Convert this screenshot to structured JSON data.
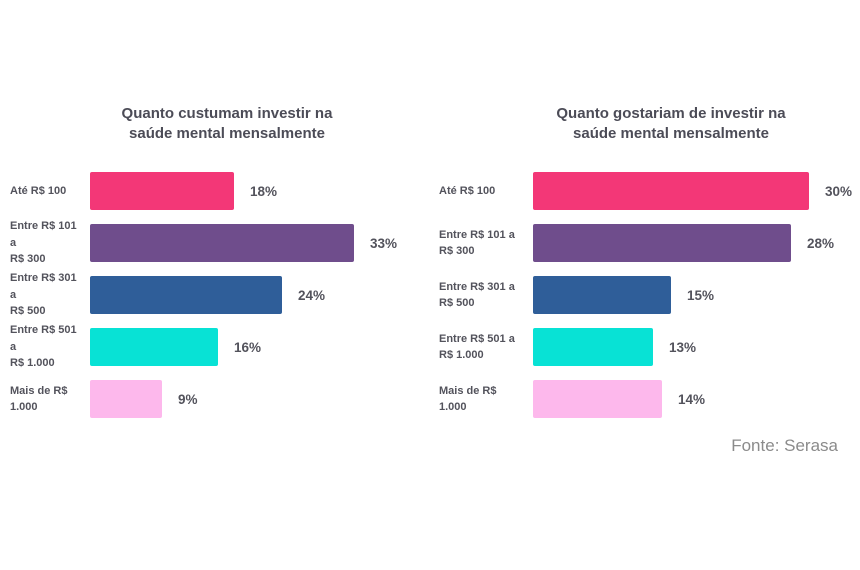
{
  "page": {
    "background_color": "#ffffff"
  },
  "footer": {
    "source_label": "Fonte: Serasa",
    "color": "#8b8b8b"
  },
  "text_colors": {
    "title": "#4c4c57",
    "category": "#53535c",
    "value": "#53535c"
  },
  "chart_data": [
    {
      "type": "bar",
      "orientation": "horizontal",
      "title": "Quanto custumam investir na saúde mental mensalmente",
      "title_lines": [
        "Quanto custumam investir na",
        "saúde mental mensalmente"
      ],
      "categories": [
        "Até R$ 100",
        "Entre R$ 101 a R$ 300",
        "Entre R$ 301 a R$ 500",
        "Entre R$ 501 a R$ 1.000",
        "Mais de R$ 1.000"
      ],
      "category_lines": [
        [
          "Até R$ 100"
        ],
        [
          "Entre R$ 101 a",
          "R$ 300"
        ],
        [
          "Entre R$ 301 a",
          "R$ 500"
        ],
        [
          "Entre R$ 501 a",
          "R$ 1.000"
        ],
        [
          "Mais de R$ 1.000"
        ]
      ],
      "values": [
        18,
        33,
        24,
        16,
        9
      ],
      "value_suffix": "%",
      "bar_colors": [
        "#f33777",
        "#6f4d8c",
        "#2f5e99",
        "#08e2d5",
        "#fdb8ec"
      ],
      "xlim": [
        0,
        40
      ],
      "grid": false,
      "data_labels": true,
      "legend": false
    },
    {
      "type": "bar",
      "orientation": "horizontal",
      "title": "Quanto gostariam de investir na saúde mental mensalmente",
      "title_lines": [
        "Quanto gostariam de investir na",
        "saúde mental mensalmente"
      ],
      "categories": [
        "Até R$ 100",
        "Entre R$ 101 a R$ 300",
        "Entre R$ 301 a R$ 500",
        "Entre R$ 501 a R$ 1.000",
        "Mais de R$ 1.000"
      ],
      "category_lines": [
        [
          "Até R$ 100"
        ],
        [
          "Entre R$ 101 a",
          "R$ 300"
        ],
        [
          "Entre R$ 301 a",
          "R$ 500"
        ],
        [
          "Entre R$ 501 a",
          "R$ 1.000"
        ],
        [
          "Mais de R$ 1.000"
        ]
      ],
      "values": [
        30,
        28,
        15,
        13,
        14
      ],
      "value_suffix": "%",
      "bar_colors": [
        "#f33777",
        "#6f4d8c",
        "#2f5e99",
        "#08e2d5",
        "#fdb8ec"
      ],
      "xlim": [
        0,
        36
      ],
      "grid": false,
      "data_labels": true,
      "legend": false
    }
  ]
}
